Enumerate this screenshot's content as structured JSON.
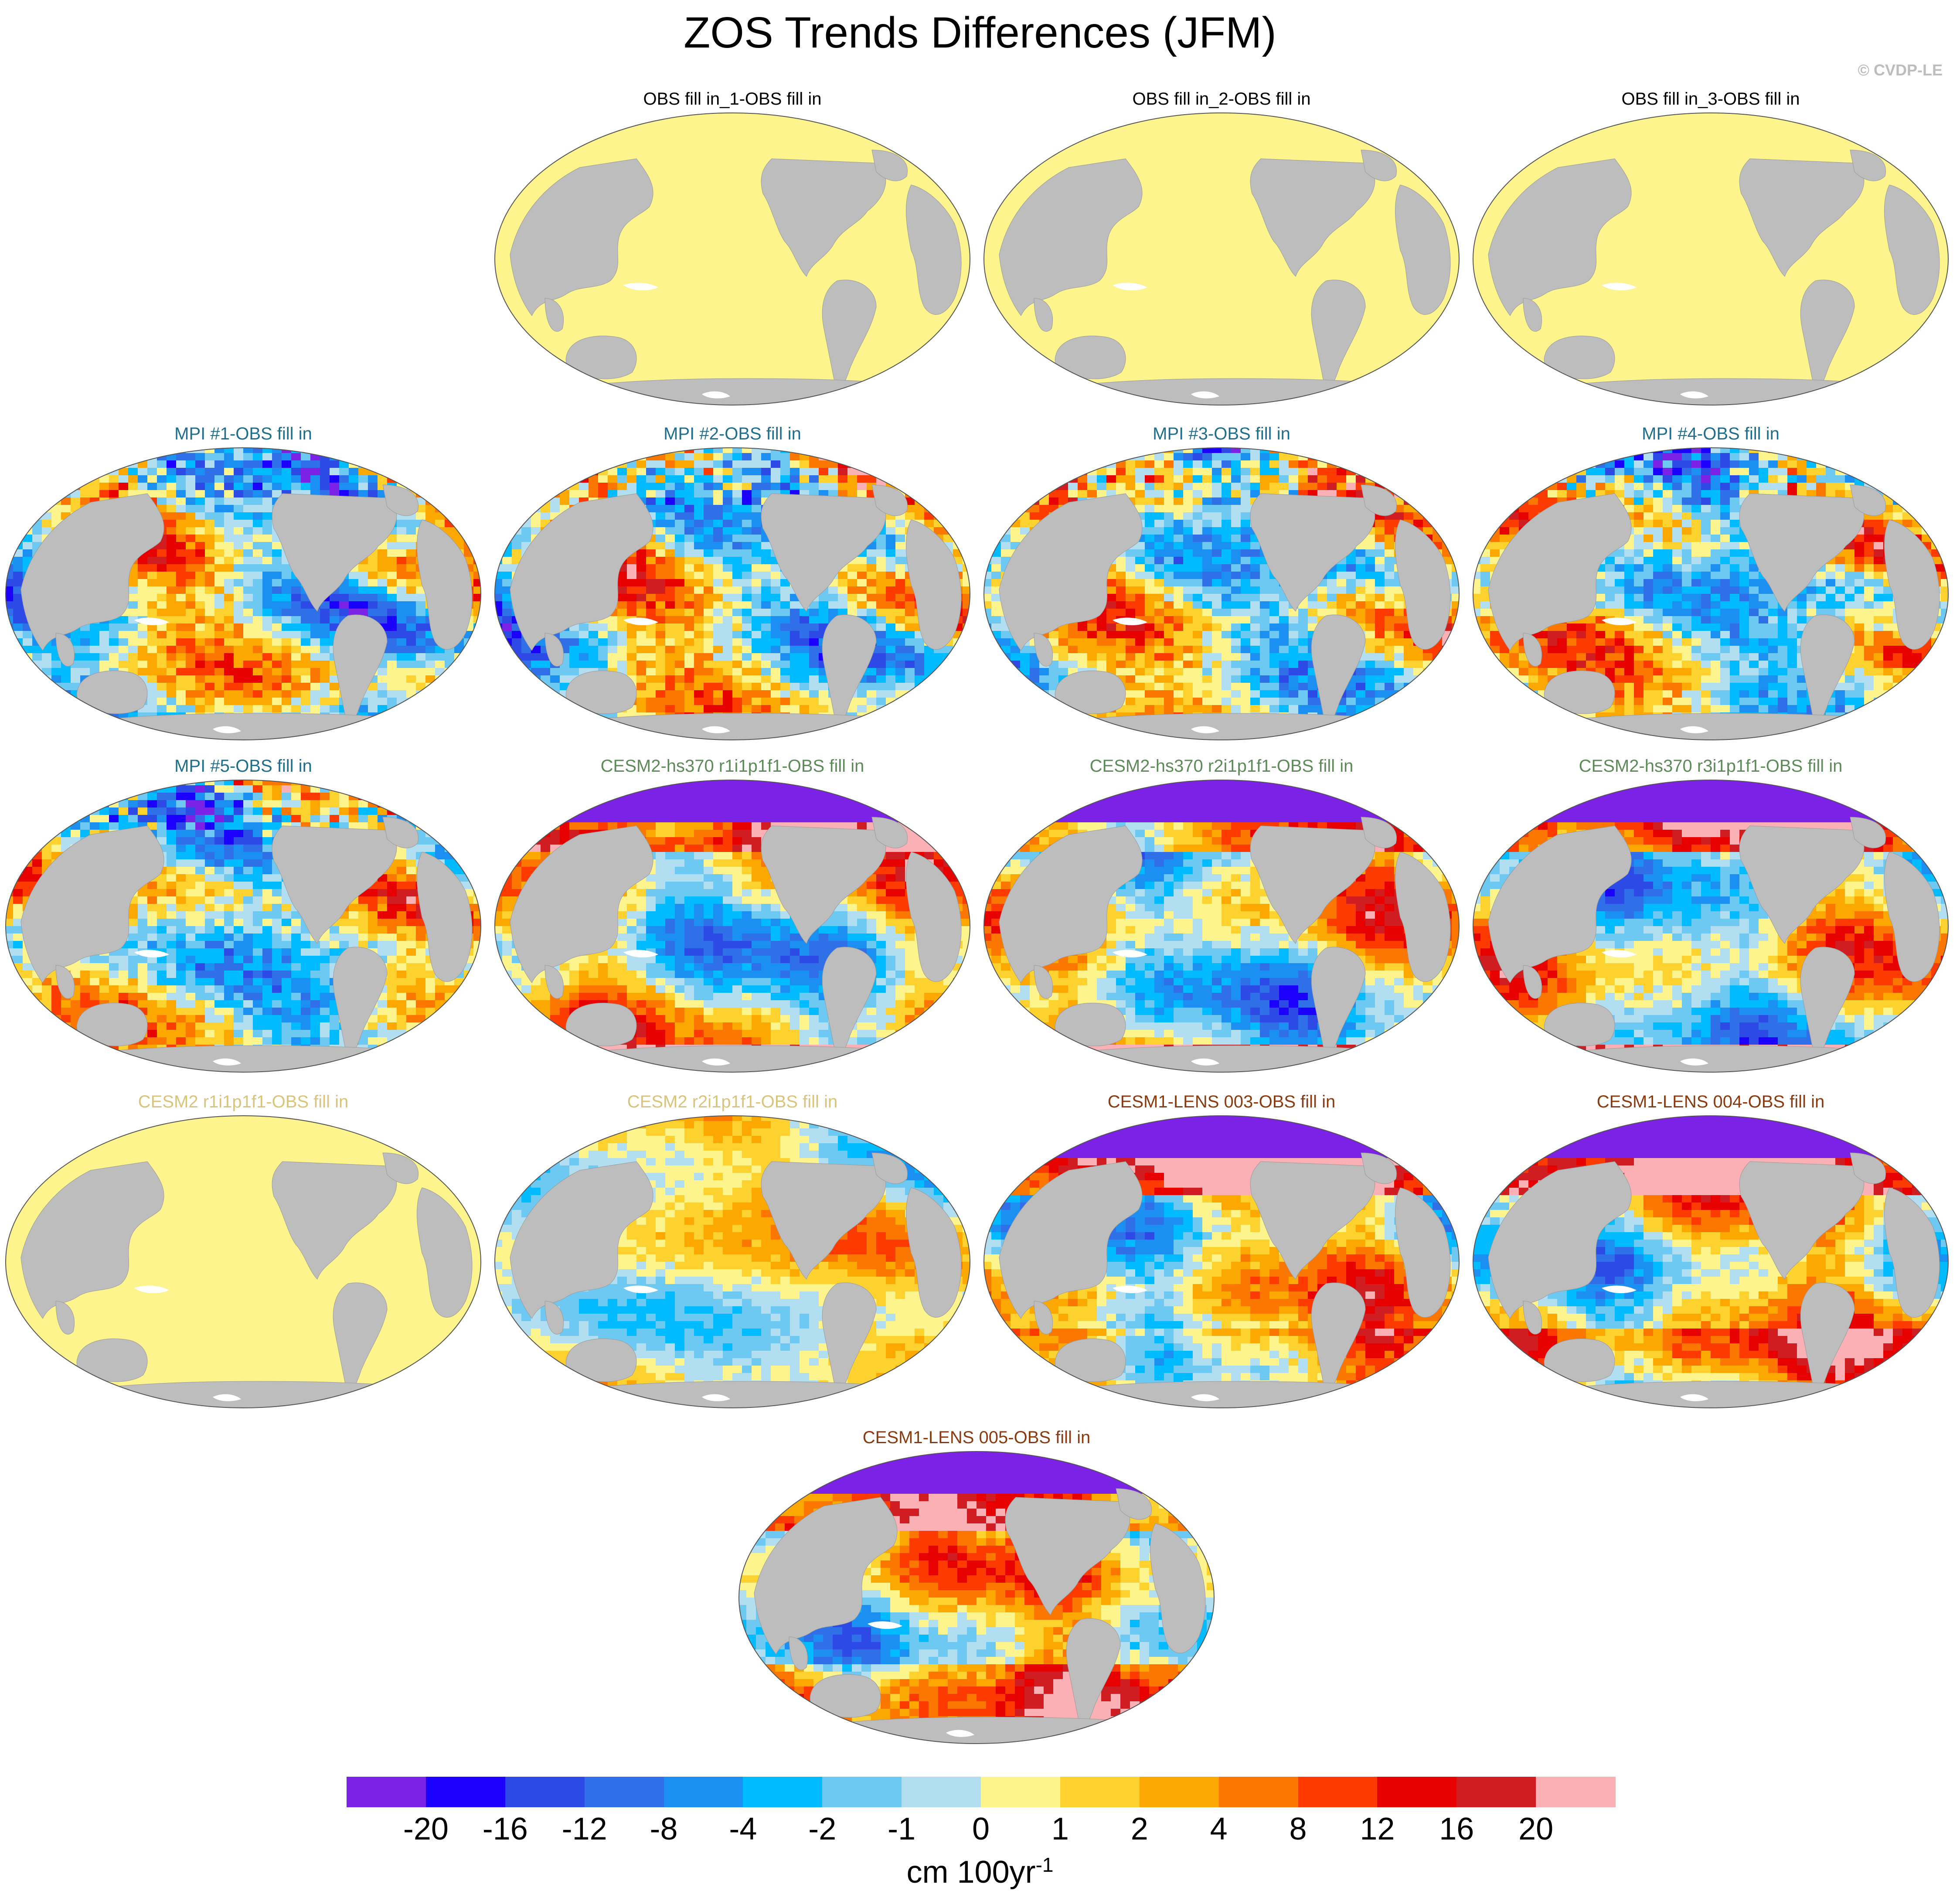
{
  "title": "ZOS Trends Differences (JFM)",
  "copyright": "© CVDP-LE",
  "colorbar": {
    "label_main": "cm 100yr",
    "label_sup": "-1",
    "ticks": [
      "-20",
      "-16",
      "-12",
      "-8",
      "-4",
      "-2",
      "-1",
      "0",
      "1",
      "2",
      "4",
      "8",
      "12",
      "16",
      "20"
    ],
    "colors": [
      "#7b22e6",
      "#1c00ff",
      "#2d49e6",
      "#2f70e8",
      "#1c90f2",
      "#00bbff",
      "#6dc8f2",
      "#b2def2",
      "#fdf48e",
      "#fdd12e",
      "#fca800",
      "#fc7700",
      "#fd3a00",
      "#e70000",
      "#d01d21",
      "#fab0b4"
    ]
  },
  "panels": [
    {
      "title": "OBS fill in_1-OBS fill in",
      "title_color": "#000000",
      "pattern": "flat"
    },
    {
      "title": "OBS fill in_2-OBS fill in",
      "title_color": "#000000",
      "pattern": "flat"
    },
    {
      "title": "OBS fill in_3-OBS fill in",
      "title_color": "#000000",
      "pattern": "flat"
    },
    {
      "title": "MPI #1-OBS fill in",
      "title_color": "#1f6e8c",
      "pattern": "mpi"
    },
    {
      "title": "MPI #2-OBS fill in",
      "title_color": "#1f6e8c",
      "pattern": "mpi"
    },
    {
      "title": "MPI #3-OBS fill in",
      "title_color": "#1f6e8c",
      "pattern": "mpi"
    },
    {
      "title": "MPI #4-OBS fill in",
      "title_color": "#1f6e8c",
      "pattern": "mpi"
    },
    {
      "title": "MPI #5-OBS fill in",
      "title_color": "#1f6e8c",
      "pattern": "mpi"
    },
    {
      "title": "CESM2-hs370 r1i1p1f1-OBS fill in",
      "title_color": "#5e8a5a",
      "pattern": "hs370"
    },
    {
      "title": "CESM2-hs370 r2i1p1f1-OBS fill in",
      "title_color": "#5e8a5a",
      "pattern": "hs370"
    },
    {
      "title": "CESM2-hs370 r3i1p1f1-OBS fill in",
      "title_color": "#5e8a5a",
      "pattern": "hs370"
    },
    {
      "title": "CESM2 r1i1p1f1-OBS fill in",
      "title_color": "#d8c47a",
      "pattern": "flat"
    },
    {
      "title": "CESM2 r2i1p1f1-OBS fill in",
      "title_color": "#d8c47a",
      "pattern": "cesm2"
    },
    {
      "title": "CESM1-LENS 003-OBS fill in",
      "title_color": "#8b3a0f",
      "pattern": "lens"
    },
    {
      "title": "CESM1-LENS 004-OBS fill in",
      "title_color": "#8b3a0f",
      "pattern": "lens"
    },
    {
      "title": "CESM1-LENS 005-OBS fill in",
      "title_color": "#8b3a0f",
      "pattern": "lens"
    }
  ]
}
